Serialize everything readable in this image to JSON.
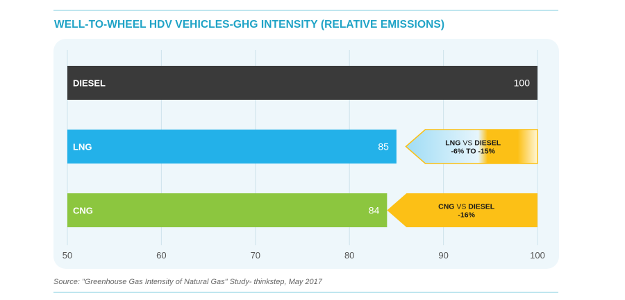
{
  "title": "WELL-TO-WHEEL HDV VEHICLES-GHG INTENSITY (RELATIVE EMISSIONS)",
  "source": "Source: \"Greenhouse Gas Intensity of Natural Gas\" Study- thinkstep, May 2017",
  "colors": {
    "title": "#1fa3c6",
    "diesel": "#3a3a3a",
    "lng": "#23b1e9",
    "cng": "#8cc63f",
    "arrow": "#fcc016",
    "panel": "#eef7fb"
  },
  "chart_data": {
    "type": "bar",
    "orientation": "horizontal",
    "categories": [
      "DIESEL",
      "LNG",
      "CNG"
    ],
    "values": [
      100,
      85,
      84
    ],
    "value_labels": [
      "100",
      "85",
      "84"
    ],
    "xlim": [
      50,
      100
    ],
    "xticks": [
      50,
      60,
      70,
      80,
      90,
      100
    ],
    "grid": true,
    "annotations": [
      {
        "category": "LNG",
        "from": 86,
        "to": 100,
        "comparison": "LNG",
        "vs": "VS",
        "baseline": "DIESEL",
        "change": "-6% TO -15%"
      },
      {
        "category": "CNG",
        "from": 84,
        "to": 100,
        "comparison": "CNG",
        "vs": "VS",
        "baseline": "DIESEL",
        "change": "-16%"
      }
    ]
  }
}
